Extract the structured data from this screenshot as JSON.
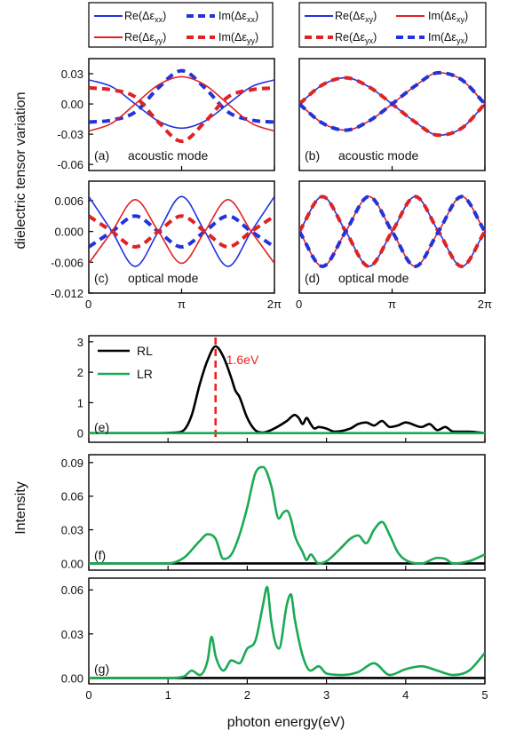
{
  "colors": {
    "blue": "#2233dd",
    "red": "#e02222",
    "black": "#000000",
    "green": "#1aaa55",
    "marker": "#ee2222"
  },
  "labels": {
    "top_ylabel": "dielectric tensor variation",
    "bottom_ylabel": "Intensity",
    "bottom_xlabel": "photon energy(eV)",
    "legend1": [
      "Re(Δε",
      "xx",
      ")",
      "Im(Δε",
      "xx",
      ")",
      "Re(Δε",
      "yy",
      ")",
      "Im(Δε",
      "yy",
      ")"
    ],
    "legend2": [
      "Re(Δε",
      "xy",
      ")",
      "Im(Δε",
      "xy",
      ")",
      "Re(Δε",
      "yx",
      ")",
      "Im(Δε",
      "yx",
      ")"
    ],
    "legend_e": [
      "RL",
      "LR"
    ],
    "marker_label": "1.6eV"
  },
  "chart_data": [
    {
      "id": "a",
      "type": "line",
      "panel_label": "(a)",
      "mode_label": "acoustic mode",
      "yticks": [
        "0.03",
        "0.00",
        "-0.03",
        "-0.06"
      ],
      "ytick_values": [
        0.03,
        0,
        -0.03,
        -0.06
      ],
      "ylim": [
        -0.066,
        0.045
      ],
      "xticks": [
        "0",
        "π",
        "2π"
      ],
      "xlim": [
        0,
        6.2832
      ],
      "series": [
        {
          "label_key": "Re xx",
          "style": "blue-solid",
          "x": [
            0,
            0.785,
            1.571,
            2.356,
            3.142,
            3.927,
            4.712,
            5.498,
            6.283
          ],
          "y": [
            0.024,
            0.017,
            0.0,
            -0.017,
            -0.024,
            -0.017,
            0.0,
            0.017,
            0.024
          ]
        },
        {
          "label_key": "Im xx",
          "style": "blue-dash",
          "x": [
            0,
            0.785,
            1.571,
            2.356,
            3.142,
            3.927,
            4.712,
            5.498,
            6.283
          ],
          "y": [
            -0.018,
            -0.016,
            -0.008,
            0.016,
            0.033,
            0.016,
            -0.008,
            -0.016,
            -0.018
          ]
        },
        {
          "label_key": "Re yy",
          "style": "red-solid",
          "x": [
            0,
            0.785,
            1.571,
            2.356,
            3.142,
            3.927,
            4.712,
            5.498,
            6.283
          ],
          "y": [
            -0.027,
            -0.019,
            0.0,
            0.019,
            0.027,
            0.019,
            0.0,
            -0.019,
            -0.027
          ]
        },
        {
          "label_key": "Im yy",
          "style": "red-dash",
          "x": [
            0,
            0.785,
            1.571,
            2.356,
            3.142,
            3.927,
            4.712,
            5.498,
            6.283
          ],
          "y": [
            0.016,
            0.014,
            0.007,
            -0.018,
            -0.037,
            -0.018,
            0.007,
            0.014,
            0.016
          ]
        }
      ]
    },
    {
      "id": "b",
      "type": "line",
      "panel_label": "(b)",
      "mode_label": "acoustic mode",
      "yticks": [],
      "ylim": [
        -0.066,
        0.045
      ],
      "xticks": [
        "0",
        "π",
        "2π"
      ],
      "xlim": [
        0,
        6.2832
      ],
      "series": [
        {
          "label_key": "Re xy",
          "style": "blue-solid",
          "x": [
            0,
            0.785,
            1.571,
            2.356,
            3.142,
            3.927,
            4.712,
            5.498,
            6.283
          ],
          "y": [
            0.0,
            0.019,
            0.026,
            0.017,
            0.0,
            -0.018,
            -0.031,
            -0.024,
            0.0
          ]
        },
        {
          "label_key": "Im xy",
          "style": "red-solid",
          "x": [
            0,
            0.785,
            1.571,
            2.356,
            3.142,
            3.927,
            4.712,
            5.498,
            6.283
          ],
          "y": [
            0.0,
            -0.019,
            -0.026,
            -0.017,
            0.0,
            0.018,
            0.031,
            0.024,
            0.0
          ]
        },
        {
          "label_key": "Re yx",
          "style": "red-dash",
          "x": [
            0,
            0.785,
            1.571,
            2.356,
            3.142,
            3.927,
            4.712,
            5.498,
            6.283
          ],
          "y": [
            0.0,
            0.019,
            0.026,
            0.017,
            0.0,
            -0.018,
            -0.031,
            -0.024,
            0.0
          ]
        },
        {
          "label_key": "Im yx",
          "style": "blue-dash",
          "x": [
            0,
            0.785,
            1.571,
            2.356,
            3.142,
            3.927,
            4.712,
            5.498,
            6.283
          ],
          "y": [
            0.0,
            -0.019,
            -0.026,
            -0.017,
            0.0,
            0.018,
            0.031,
            0.024,
            0.0
          ]
        }
      ]
    },
    {
      "id": "c",
      "type": "line",
      "panel_label": "(c)",
      "mode_label": "optical mode",
      "yticks": [
        "0.006",
        "0.000",
        "-0.006",
        "-0.012"
      ],
      "ytick_values": [
        0.006,
        0,
        -0.006,
        -0.012
      ],
      "ylim": [
        -0.012,
        0.0098
      ],
      "xticks": [
        "0",
        "π",
        "2π"
      ],
      "xlim": [
        0,
        6.2832
      ],
      "series": [
        {
          "label_key": "Re xx",
          "style": "blue-solid",
          "x": [
            0,
            0.785,
            1.571,
            2.356,
            3.142,
            3.927,
            4.712,
            5.498,
            6.283
          ],
          "y": [
            0.0068,
            0.0,
            -0.0068,
            0.0,
            0.0068,
            0.0,
            -0.0068,
            0.0,
            0.0068
          ]
        },
        {
          "label_key": "Im xx",
          "style": "blue-dash",
          "x": [
            0,
            0.785,
            1.571,
            2.356,
            3.142,
            3.927,
            4.712,
            5.498,
            6.283
          ],
          "y": [
            -0.003,
            0.0,
            0.003,
            0.0,
            -0.003,
            0.0,
            0.003,
            0.0,
            -0.003
          ]
        },
        {
          "label_key": "Re yy",
          "style": "red-solid",
          "x": [
            0,
            0.785,
            1.571,
            2.356,
            3.142,
            3.927,
            4.712,
            5.498,
            6.283
          ],
          "y": [
            -0.0062,
            0.0,
            0.0062,
            0.0,
            -0.0062,
            0.0,
            0.0062,
            0.0,
            -0.0062
          ]
        },
        {
          "label_key": "Im yy",
          "style": "red-dash",
          "x": [
            0,
            0.785,
            1.571,
            2.356,
            3.142,
            3.927,
            4.712,
            5.498,
            6.283
          ],
          "y": [
            0.003,
            0.0,
            -0.003,
            0.0,
            0.003,
            0.0,
            -0.003,
            0.0,
            0.003
          ]
        }
      ]
    },
    {
      "id": "d",
      "type": "line",
      "panel_label": "(d)",
      "mode_label": "optical mode",
      "yticks": [],
      "ylim": [
        -0.012,
        0.0098
      ],
      "xticks": [
        "0",
        "π",
        "2π"
      ],
      "xlim": [
        0,
        6.2832
      ],
      "series": [
        {
          "label_key": "Re xy",
          "style": "blue-solid",
          "x": [
            0,
            0.785,
            1.571,
            2.356,
            3.142,
            3.927,
            4.712,
            5.498,
            6.283
          ],
          "y": [
            0.0,
            0.0068,
            0.0,
            -0.0068,
            0.0,
            0.0068,
            0.0,
            -0.0068,
            0.0
          ]
        },
        {
          "label_key": "Im xy",
          "style": "red-solid",
          "x": [
            0,
            0.785,
            1.571,
            2.356,
            3.142,
            3.927,
            4.712,
            5.498,
            6.283
          ],
          "y": [
            0.0,
            -0.0068,
            0.0,
            0.0068,
            0.0,
            -0.0068,
            0.0,
            0.0068,
            0.0
          ]
        },
        {
          "label_key": "Re yx",
          "style": "red-dash",
          "x": [
            0,
            0.785,
            1.571,
            2.356,
            3.142,
            3.927,
            4.712,
            5.498,
            6.283
          ],
          "y": [
            0.0,
            0.0068,
            0.0,
            -0.0068,
            0.0,
            0.0068,
            0.0,
            -0.0068,
            0.0
          ]
        },
        {
          "label_key": "Im yx",
          "style": "blue-dash",
          "x": [
            0,
            0.785,
            1.571,
            2.356,
            3.142,
            3.927,
            4.712,
            5.498,
            6.283
          ],
          "y": [
            0.0,
            -0.0068,
            0.0,
            0.0068,
            0.0,
            -0.0068,
            0.0,
            0.0068,
            0.0
          ]
        }
      ]
    },
    {
      "id": "e",
      "type": "line",
      "panel_label": "(e)",
      "yticks": [
        "0",
        "1",
        "2",
        "3"
      ],
      "ytick_values": [
        0,
        1,
        2,
        3
      ],
      "ylim": [
        -0.3,
        3.2
      ],
      "xlim": [
        0,
        5
      ],
      "marker_x": 1.6,
      "series": [
        {
          "name": "RL",
          "style": "black",
          "x": [
            0,
            0.8,
            1.1,
            1.2,
            1.3,
            1.4,
            1.5,
            1.6,
            1.7,
            1.8,
            1.85,
            1.9,
            2.0,
            2.1,
            2.2,
            2.3,
            2.5,
            2.6,
            2.65,
            2.7,
            2.75,
            2.8,
            2.85,
            2.9,
            3.0,
            3.1,
            3.3,
            3.4,
            3.5,
            3.6,
            3.7,
            3.8,
            3.9,
            4.0,
            4.2,
            4.3,
            4.4,
            4.5,
            4.6,
            4.8,
            5.0
          ],
          "y": [
            0,
            0,
            0.02,
            0.1,
            0.6,
            1.6,
            2.4,
            2.85,
            2.5,
            1.8,
            1.4,
            1.2,
            0.5,
            0.1,
            0.02,
            0.1,
            0.4,
            0.6,
            0.5,
            0.3,
            0.5,
            0.3,
            0.15,
            0.2,
            0.15,
            0.05,
            0.15,
            0.3,
            0.35,
            0.25,
            0.4,
            0.2,
            0.25,
            0.35,
            0.2,
            0.3,
            0.1,
            0.2,
            0.05,
            0.05,
            0.0
          ]
        },
        {
          "name": "LR",
          "style": "green",
          "x": [
            0,
            5
          ],
          "y": [
            0,
            0
          ]
        }
      ]
    },
    {
      "id": "f",
      "type": "line",
      "panel_label": "(f)",
      "yticks": [
        "0.00",
        "0.03",
        "0.06",
        "0.09"
      ],
      "ytick_values": [
        0,
        0.03,
        0.06,
        0.09
      ],
      "ylim": [
        -0.006,
        0.097
      ],
      "xlim": [
        0,
        5
      ],
      "series": [
        {
          "name": "RL",
          "style": "black",
          "x": [
            0,
            5
          ],
          "y": [
            0,
            0
          ]
        },
        {
          "name": "LR",
          "style": "green",
          "x": [
            0,
            1.0,
            1.2,
            1.4,
            1.5,
            1.6,
            1.7,
            1.8,
            1.9,
            2.0,
            2.1,
            2.2,
            2.3,
            2.4,
            2.45,
            2.5,
            2.55,
            2.6,
            2.7,
            2.75,
            2.8,
            2.9,
            3.0,
            3.2,
            3.3,
            3.4,
            3.5,
            3.6,
            3.7,
            3.8,
            3.9,
            4.0,
            4.2,
            4.4,
            4.5,
            4.6,
            4.8,
            5.0
          ],
          "y": [
            0,
            0,
            0.005,
            0.02,
            0.026,
            0.022,
            0.004,
            0.008,
            0.025,
            0.05,
            0.08,
            0.086,
            0.07,
            0.04,
            0.045,
            0.047,
            0.04,
            0.025,
            0.01,
            0.003,
            0.008,
            0.0,
            0.002,
            0.015,
            0.022,
            0.025,
            0.018,
            0.03,
            0.037,
            0.025,
            0.01,
            0.003,
            0.0,
            0.005,
            0.004,
            0.0,
            0.002,
            0.008
          ]
        }
      ]
    },
    {
      "id": "g",
      "type": "line",
      "panel_label": "(g)",
      "xlabel": "photon energy(eV)",
      "yticks": [
        "0.00",
        "0.03",
        "0.06"
      ],
      "ytick_values": [
        0,
        0.03,
        0.06
      ],
      "ylim": [
        -0.004,
        0.068
      ],
      "xticks": [
        "0",
        "1",
        "2",
        "3",
        "4",
        "5"
      ],
      "xtick_values": [
        0,
        1,
        2,
        3,
        4,
        5
      ],
      "xlim": [
        0,
        5
      ],
      "series": [
        {
          "name": "RL",
          "style": "black",
          "x": [
            0,
            5
          ],
          "y": [
            0,
            0
          ]
        },
        {
          "name": "LR",
          "style": "green",
          "x": [
            0,
            1.0,
            1.2,
            1.3,
            1.4,
            1.5,
            1.55,
            1.6,
            1.7,
            1.8,
            1.9,
            2.0,
            2.1,
            2.2,
            2.25,
            2.3,
            2.35,
            2.4,
            2.5,
            2.55,
            2.6,
            2.7,
            2.8,
            2.9,
            3.0,
            3.2,
            3.4,
            3.6,
            3.8,
            4.0,
            4.2,
            4.4,
            4.6,
            4.8,
            5.0
          ],
          "y": [
            0,
            0,
            0.001,
            0.005,
            0.002,
            0.012,
            0.028,
            0.015,
            0.005,
            0.012,
            0.01,
            0.02,
            0.025,
            0.05,
            0.062,
            0.04,
            0.025,
            0.02,
            0.05,
            0.057,
            0.04,
            0.015,
            0.005,
            0.008,
            0.003,
            0.002,
            0.004,
            0.01,
            0.002,
            0.006,
            0.008,
            0.005,
            0.002,
            0.005,
            0.017
          ]
        }
      ]
    }
  ]
}
